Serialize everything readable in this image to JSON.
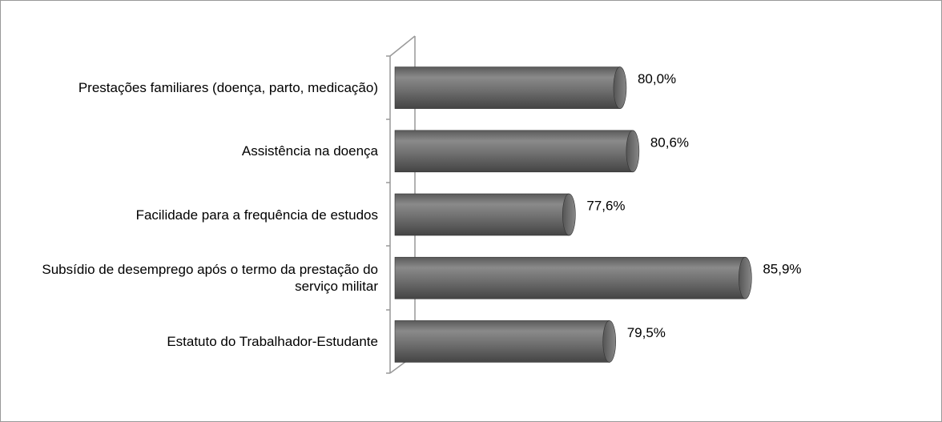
{
  "chart_data": {
    "type": "bar",
    "orientation": "horizontal",
    "categories": [
      "Prestações familiares (doença, parto, medicação)",
      "Assistência na doença",
      "Facilidade para a frequência de estudos",
      "Subsídio de desemprego após o termo da prestação do serviço militar",
      "Estatuto do Trabalhador-Estudante"
    ],
    "values": [
      80.0,
      80.6,
      77.6,
      85.9,
      79.5
    ],
    "value_labels": [
      "80,0%",
      "80,6%",
      "77,6%",
      "85,9%",
      "79,5%"
    ],
    "color": "#6e6e6e",
    "xlim": [
      69.4,
      90
    ]
  }
}
